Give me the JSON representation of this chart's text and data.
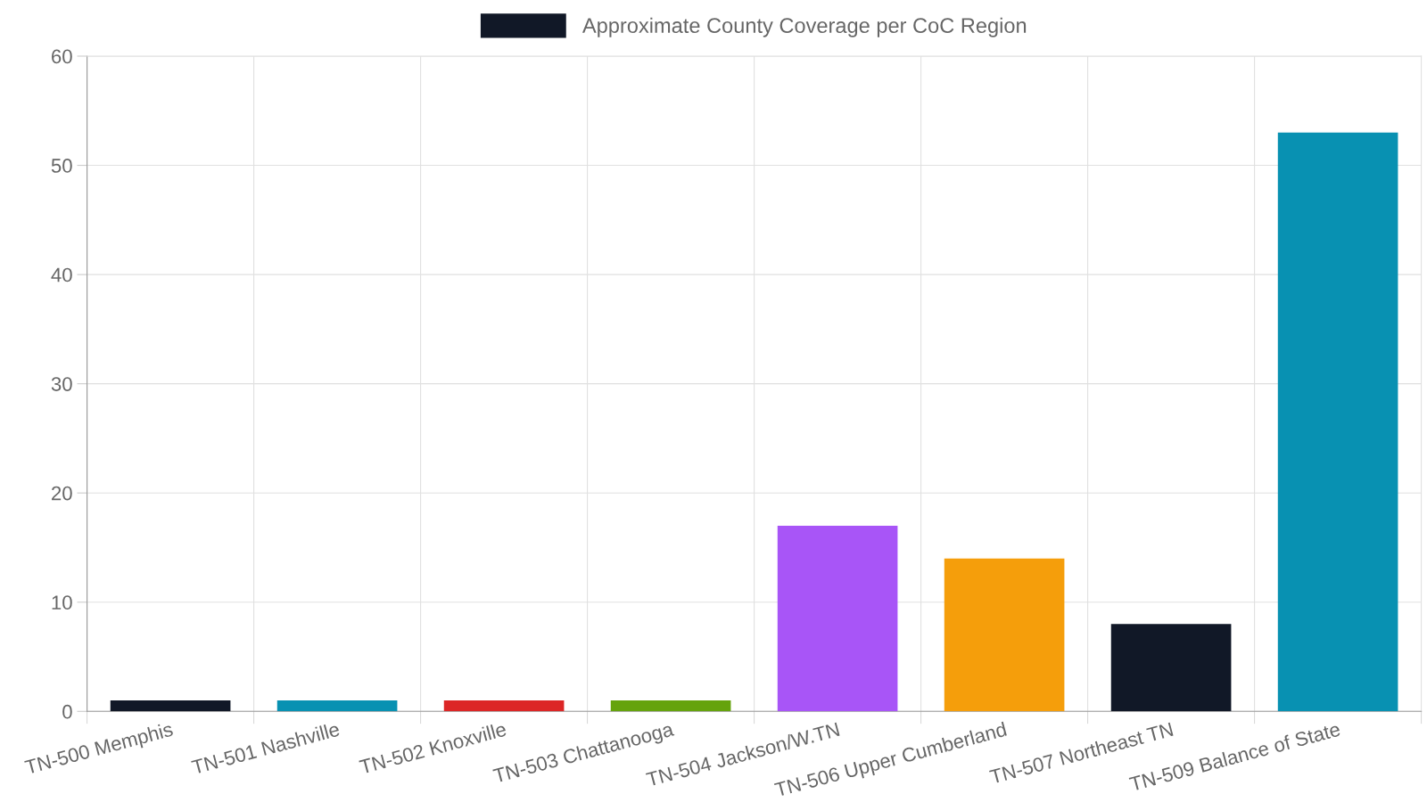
{
  "chart_data": {
    "type": "bar",
    "categories": [
      "TN-500 Memphis",
      "TN-501 Nashville",
      "TN-502 Knoxville",
      "TN-503 Chattanooga",
      "TN-504 Jackson/W.TN",
      "TN-506 Upper Cumberland",
      "TN-507 Northeast TN",
      "TN-509 Balance of State"
    ],
    "series": [
      {
        "name": "Approximate County Coverage per CoC Region",
        "colors": [
          "#111827",
          "#0891b2",
          "#dc2626",
          "#65a30d",
          "#a855f7",
          "#f59e0b",
          "#111827",
          "#0891b2"
        ],
        "values": [
          1,
          1,
          1,
          1,
          17,
          14,
          8,
          53
        ]
      }
    ],
    "ylim": [
      0,
      60
    ],
    "yticks": [
      0,
      10,
      20,
      30,
      40,
      50,
      60
    ],
    "grid": true,
    "legend": "top"
  }
}
